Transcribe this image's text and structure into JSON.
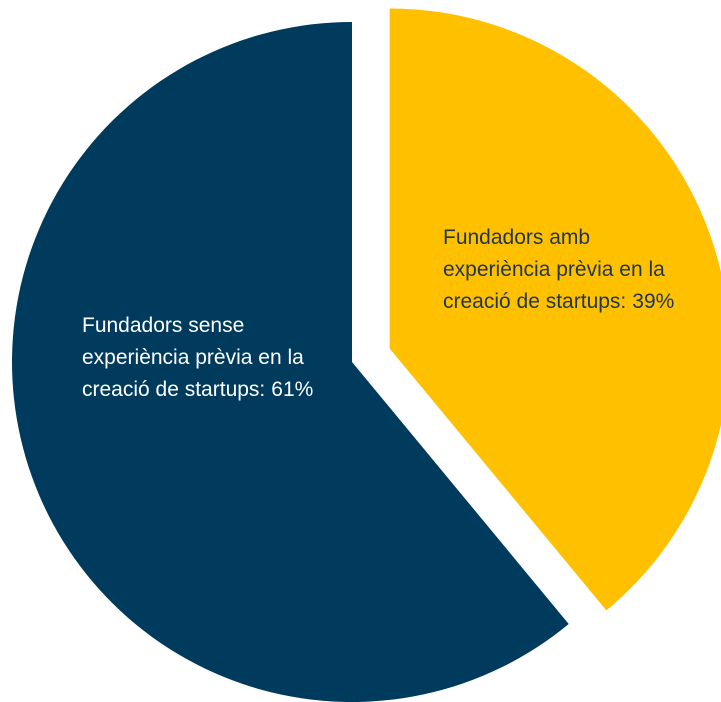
{
  "chart_data": {
    "type": "pie",
    "categories": [
      "Fundadors amb experiència prèvia en la creació de startups:",
      "Fundadors sense experiència prèvia en la creació de startups:"
    ],
    "values": [
      39,
      61
    ],
    "value_labels": [
      "39%",
      "61%"
    ],
    "colors": [
      "#ffc000",
      "#003a5d"
    ]
  }
}
